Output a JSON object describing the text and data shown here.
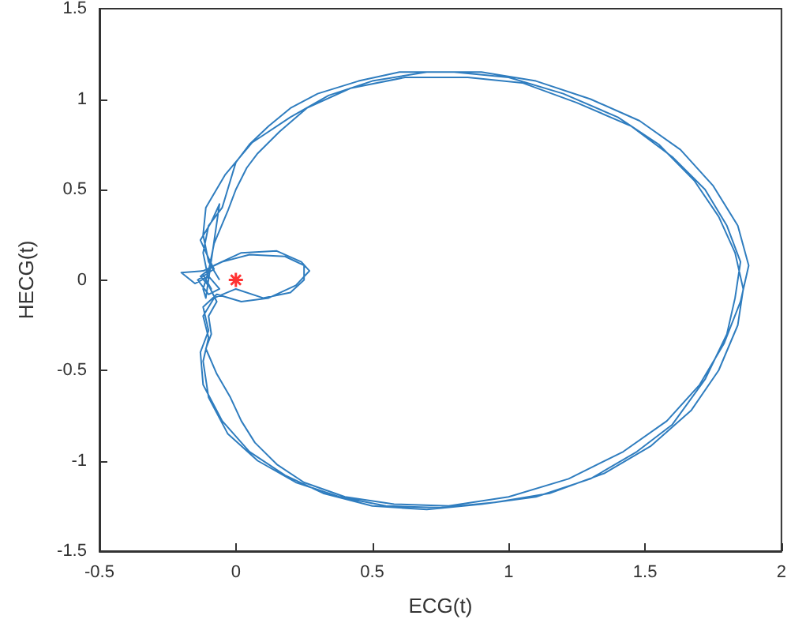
{
  "chart_data": {
    "type": "line",
    "xlabel": "ECG(t)",
    "ylabel": "HECG(t)",
    "xlim": [
      -0.5,
      2
    ],
    "xticks": [
      -0.5,
      0,
      0.5,
      1,
      1.5,
      2
    ],
    "ylim": [
      -1.5,
      1.5
    ],
    "yticks": [
      -1.5,
      -1,
      -0.5,
      0,
      0.5,
      1,
      1.5
    ],
    "grid": false,
    "marker": "none",
    "line_style": "solid",
    "series": [
      {
        "color": "#2f7dbf",
        "x": [
          -0.1,
          -0.12,
          -0.1,
          -0.05,
          -0.02,
          0.0,
          0.05,
          0.12,
          0.2,
          0.3,
          0.45,
          0.6,
          0.8,
          1.0,
          1.2,
          1.4,
          1.55,
          1.68,
          1.77,
          1.83,
          1.86,
          1.84,
          1.77,
          1.67,
          1.52,
          1.35,
          1.15,
          0.95,
          0.75,
          0.55,
          0.38,
          0.22,
          0.08,
          -0.03,
          -0.1,
          -0.12,
          -0.1,
          -0.12,
          -0.08,
          0.0,
          0.1,
          0.2,
          0.25,
          0.25,
          0.18,
          0.05,
          -0.05,
          -0.12,
          -0.2,
          -0.15,
          -0.1,
          -0.06,
          -0.1,
          -0.14,
          -0.08,
          -0.1,
          -0.13,
          -0.09,
          -0.06,
          -0.11,
          -0.12,
          -0.1,
          -0.08,
          -0.03,
          0.0,
          0.04,
          0.08,
          0.16,
          0.26,
          0.42,
          0.62,
          0.85,
          1.05,
          1.25,
          1.45,
          1.6,
          1.72,
          1.8,
          1.85,
          1.83,
          1.8,
          1.72,
          1.6,
          1.47,
          1.3,
          1.1,
          0.9,
          0.7,
          0.5,
          0.32,
          0.18,
          0.05,
          -0.05,
          -0.12,
          -0.13,
          -0.1,
          -0.12,
          -0.07,
          0.02,
          0.12,
          0.22,
          0.27,
          0.24,
          0.15,
          0.02,
          -0.08,
          -0.13,
          -0.09,
          -0.12,
          -0.07,
          -0.1,
          -0.09,
          -0.11,
          -0.07,
          -0.02,
          0.02,
          0.07,
          0.15,
          0.25,
          0.4,
          0.58,
          0.78,
          1.0,
          1.22,
          1.42,
          1.58,
          1.7,
          1.79,
          1.85,
          1.88,
          1.84,
          1.75,
          1.63,
          1.48,
          1.3,
          1.1,
          0.9,
          0.7,
          0.5,
          0.34,
          0.2,
          0.06,
          -0.04,
          -0.11,
          -0.12,
          -0.1,
          -0.06
        ],
        "values": [
          0.0,
          0.15,
          0.3,
          0.4,
          0.55,
          0.65,
          0.75,
          0.85,
          0.95,
          1.03,
          1.1,
          1.15,
          1.15,
          1.12,
          1.03,
          0.9,
          0.75,
          0.55,
          0.35,
          0.15,
          -0.05,
          -0.25,
          -0.5,
          -0.72,
          -0.92,
          -1.07,
          -1.18,
          -1.23,
          -1.26,
          -1.25,
          -1.2,
          -1.12,
          -1.0,
          -0.85,
          -0.65,
          -0.45,
          -0.32,
          -0.2,
          -0.1,
          -0.05,
          -0.1,
          -0.07,
          0.0,
          0.08,
          0.13,
          0.14,
          0.1,
          0.05,
          0.04,
          -0.02,
          0.02,
          -0.05,
          -0.08,
          0.0,
          0.06,
          0.12,
          0.22,
          0.32,
          0.42,
          -0.1,
          -0.05,
          0.05,
          0.2,
          0.38,
          0.5,
          0.62,
          0.7,
          0.82,
          0.95,
          1.06,
          1.12,
          1.12,
          1.09,
          0.98,
          0.85,
          0.68,
          0.5,
          0.3,
          0.1,
          -0.1,
          -0.3,
          -0.55,
          -0.8,
          -0.95,
          -1.1,
          -1.2,
          -1.24,
          -1.27,
          -1.25,
          -1.18,
          -1.08,
          -0.95,
          -0.78,
          -0.58,
          -0.4,
          -0.28,
          -0.15,
          -0.08,
          -0.12,
          -0.1,
          -0.03,
          0.05,
          0.1,
          0.16,
          0.15,
          0.08,
          0.02,
          -0.05,
          0.03,
          -0.12,
          -0.2,
          -0.3,
          -0.38,
          -0.52,
          -0.65,
          -0.78,
          -0.9,
          -1.02,
          -1.12,
          -1.2,
          -1.24,
          -1.25,
          -1.2,
          -1.1,
          -0.95,
          -0.78,
          -0.58,
          -0.35,
          -0.12,
          0.08,
          0.3,
          0.52,
          0.72,
          0.88,
          1.0,
          1.1,
          1.15,
          1.15,
          1.1,
          1.02,
          0.9,
          0.76,
          0.58,
          0.4,
          0.25,
          0.1,
          0.0
        ]
      },
      {
        "type": "scatter",
        "marker": "cross",
        "color": "#ff0000",
        "x": [
          0
        ],
        "values": [
          0
        ]
      }
    ]
  }
}
